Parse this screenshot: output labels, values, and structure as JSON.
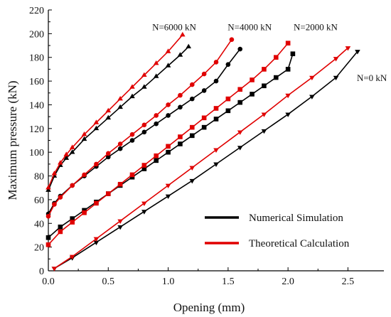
{
  "chart_data": {
    "type": "line",
    "xlabel": "Opening (mm)",
    "ylabel": "Maximum pressure (kN)",
    "xlim": [
      0.0,
      2.8
    ],
    "ylim": [
      0,
      220
    ],
    "xticks": [
      0.0,
      0.5,
      1.0,
      1.5,
      2.0,
      2.5
    ],
    "xtick_labels": [
      "0.0",
      "0.5",
      "1.0",
      "1.5",
      "2.0",
      "2.5"
    ],
    "yticks": [
      0,
      20,
      40,
      60,
      80,
      100,
      120,
      140,
      160,
      180,
      200,
      220
    ],
    "ytick_labels": [
      "0",
      "20",
      "40",
      "60",
      "80",
      "100",
      "120",
      "140",
      "160",
      "180",
      "200",
      "220"
    ],
    "grid": false,
    "legend_position": "bottom-right",
    "legend": [
      {
        "label": "Numerical Simulation",
        "color": "#000000"
      },
      {
        "label": "Theoretical Calculation",
        "color": "#e00000"
      }
    ],
    "annotations": [
      {
        "text": "N=6000 kN",
        "x": 1.05,
        "y": 203
      },
      {
        "text": "N=4000 kN",
        "x": 1.68,
        "y": 203
      },
      {
        "text": "N=2000 kN",
        "x": 2.23,
        "y": 203
      },
      {
        "text": "N=0 kN",
        "x": 2.7,
        "y": 160
      }
    ],
    "series": [
      {
        "group": "N=6000 kN",
        "method": "Numerical Simulation",
        "color": "#000000",
        "marker": "triangle-up",
        "x": [
          0.0,
          0.05,
          0.1,
          0.15,
          0.2,
          0.3,
          0.4,
          0.5,
          0.6,
          0.7,
          0.8,
          0.9,
          1.0,
          1.1,
          1.17
        ],
        "y": [
          68,
          80,
          89,
          95,
          100,
          111,
          120,
          129,
          138,
          147,
          155,
          164,
          173,
          182,
          189
        ]
      },
      {
        "group": "N=6000 kN",
        "method": "Theoretical Calculation",
        "color": "#e00000",
        "marker": "triangle-up",
        "x": [
          0.0,
          0.05,
          0.1,
          0.15,
          0.2,
          0.3,
          0.4,
          0.5,
          0.6,
          0.7,
          0.8,
          0.9,
          1.0,
          1.12
        ],
        "y": [
          70,
          82,
          91,
          98,
          104,
          115,
          125,
          135,
          145,
          155,
          165,
          175,
          185,
          199
        ]
      },
      {
        "group": "N=4000 kN",
        "method": "Numerical Simulation",
        "color": "#000000",
        "marker": "circle",
        "x": [
          0.0,
          0.05,
          0.1,
          0.2,
          0.3,
          0.4,
          0.5,
          0.6,
          0.7,
          0.8,
          0.9,
          1.0,
          1.1,
          1.2,
          1.3,
          1.4,
          1.5,
          1.6
        ],
        "y": [
          48,
          57,
          63,
          72,
          80,
          88,
          96,
          103,
          110,
          117,
          124,
          131,
          138,
          145,
          152,
          160,
          174,
          187
        ]
      },
      {
        "group": "N=4000 kN",
        "method": "Theoretical Calculation",
        "color": "#e00000",
        "marker": "circle",
        "x": [
          0.0,
          0.05,
          0.1,
          0.2,
          0.3,
          0.4,
          0.5,
          0.6,
          0.7,
          0.8,
          0.9,
          1.0,
          1.1,
          1.2,
          1.3,
          1.4,
          1.53
        ],
        "y": [
          46,
          56,
          62,
          72,
          81,
          90,
          99,
          107,
          115,
          123,
          131,
          140,
          148,
          157,
          166,
          176,
          195
        ]
      },
      {
        "group": "N=2000 kN",
        "method": "Numerical Simulation",
        "color": "#000000",
        "marker": "square",
        "x": [
          0.0,
          0.1,
          0.2,
          0.3,
          0.4,
          0.5,
          0.6,
          0.7,
          0.8,
          0.9,
          1.0,
          1.1,
          1.2,
          1.3,
          1.4,
          1.5,
          1.6,
          1.7,
          1.8,
          1.9,
          2.0,
          2.04
        ],
        "y": [
          28,
          37,
          44,
          51,
          58,
          65,
          72,
          79,
          86,
          93,
          100,
          107,
          114,
          121,
          128,
          135,
          142,
          149,
          156,
          163,
          170,
          183
        ]
      },
      {
        "group": "N=2000 kN",
        "method": "Theoretical Calculation",
        "color": "#e00000",
        "marker": "square",
        "x": [
          0.0,
          0.1,
          0.2,
          0.3,
          0.4,
          0.5,
          0.6,
          0.7,
          0.8,
          0.9,
          1.0,
          1.1,
          1.2,
          1.3,
          1.4,
          1.5,
          1.6,
          1.7,
          1.8,
          1.9,
          2.0
        ],
        "y": [
          22,
          33,
          41,
          49,
          57,
          65,
          73,
          81,
          89,
          97,
          105,
          113,
          121,
          129,
          137,
          145,
          153,
          161,
          170,
          180,
          192
        ]
      },
      {
        "group": "N=0 kN",
        "method": "Numerical Simulation",
        "color": "#000000",
        "marker": "triangle-down",
        "x": [
          0.05,
          0.2,
          0.4,
          0.6,
          0.8,
          1.0,
          1.2,
          1.4,
          1.6,
          1.8,
          2.0,
          2.2,
          2.4,
          2.58
        ],
        "y": [
          2,
          11,
          24,
          37,
          50,
          63,
          76,
          90,
          104,
          118,
          132,
          147,
          163,
          185
        ]
      },
      {
        "group": "N=0 kN",
        "method": "Theoretical Calculation",
        "color": "#e00000",
        "marker": "triangle-down",
        "x": [
          0.05,
          0.2,
          0.4,
          0.6,
          0.8,
          1.0,
          1.2,
          1.4,
          1.6,
          1.8,
          2.0,
          2.2,
          2.4,
          2.5
        ],
        "y": [
          2,
          12,
          27,
          42,
          57,
          72,
          87,
          102,
          117,
          132,
          148,
          163,
          179,
          188
        ]
      }
    ]
  }
}
